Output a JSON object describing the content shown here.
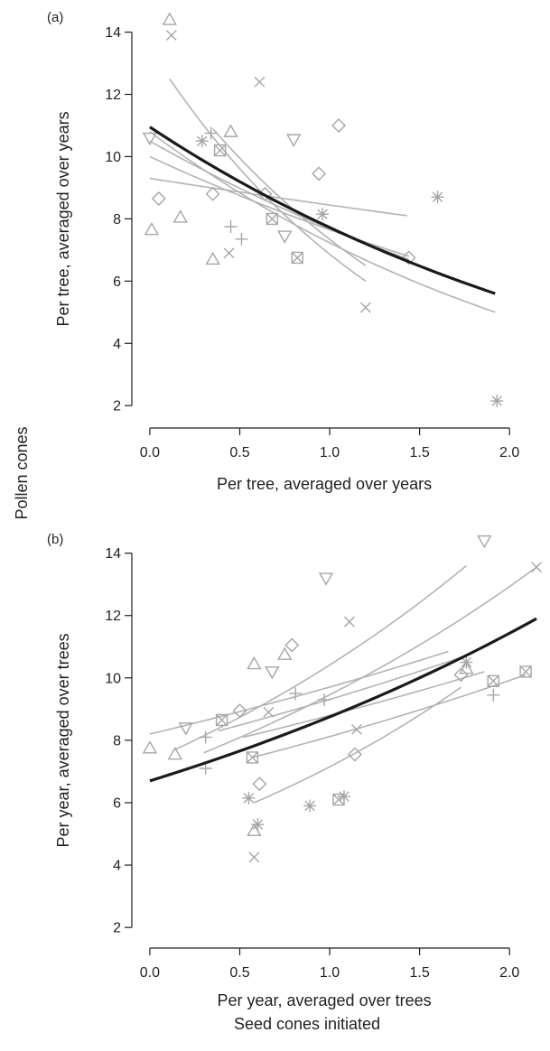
{
  "figure": {
    "shared_ylabel": "Pollen cones",
    "shared_xlabel": "Seed cones initiated"
  },
  "colors": {
    "fit_overall": "#1a1a1a",
    "fit_individual": "#b3b3b3",
    "points": "#a6a6a6",
    "axis": "#231f20"
  },
  "chart_data": [
    {
      "panel": "(a)",
      "type": "scatter",
      "xlabel": "Per tree, averaged over years",
      "ylabel": "Per tree, averaged over years",
      "xlim": [
        -0.1,
        2.2
      ],
      "ylim": [
        1.6,
        14.8
      ],
      "xticks": [
        "0.0",
        "0.5",
        "1.0",
        "1.5",
        "2.0"
      ],
      "yticks": [
        "2",
        "4",
        "6",
        "8",
        "10",
        "12",
        "14"
      ],
      "points": [
        {
          "marker": "triangle-up",
          "x": 0.11,
          "y": 14.4
        },
        {
          "marker": "x",
          "x": 0.12,
          "y": 13.9
        },
        {
          "marker": "triangle-down",
          "x": 0.0,
          "y": 10.6
        },
        {
          "marker": "diamond",
          "x": 0.05,
          "y": 8.65
        },
        {
          "marker": "triangle-up",
          "x": 0.01,
          "y": 7.65
        },
        {
          "marker": "triangle-up",
          "x": 0.17,
          "y": 8.05
        },
        {
          "marker": "asterisk",
          "x": 0.29,
          "y": 10.5
        },
        {
          "marker": "plus",
          "x": 0.34,
          "y": 10.75
        },
        {
          "marker": "boxed-x",
          "x": 0.39,
          "y": 10.2
        },
        {
          "marker": "diamond",
          "x": 0.35,
          "y": 8.8
        },
        {
          "marker": "triangle-up",
          "x": 0.45,
          "y": 10.8
        },
        {
          "marker": "triangle-up",
          "x": 0.35,
          "y": 6.7
        },
        {
          "marker": "x",
          "x": 0.44,
          "y": 6.9
        },
        {
          "marker": "plus",
          "x": 0.45,
          "y": 7.75
        },
        {
          "marker": "plus",
          "x": 0.51,
          "y": 7.35
        },
        {
          "marker": "x",
          "x": 0.61,
          "y": 12.4
        },
        {
          "marker": "diamond",
          "x": 0.64,
          "y": 8.8
        },
        {
          "marker": "boxed-x",
          "x": 0.68,
          "y": 8.0
        },
        {
          "marker": "triangle-down",
          "x": 0.75,
          "y": 7.45
        },
        {
          "marker": "boxed-x",
          "x": 0.82,
          "y": 6.75
        },
        {
          "marker": "triangle-down",
          "x": 0.8,
          "y": 10.55
        },
        {
          "marker": "diamond",
          "x": 0.94,
          "y": 9.45
        },
        {
          "marker": "asterisk",
          "x": 0.96,
          "y": 8.15
        },
        {
          "marker": "diamond",
          "x": 1.05,
          "y": 11.0
        },
        {
          "marker": "x",
          "x": 1.2,
          "y": 5.15
        },
        {
          "marker": "diamond",
          "x": 1.44,
          "y": 6.75
        },
        {
          "marker": "asterisk",
          "x": 1.6,
          "y": 8.7
        },
        {
          "marker": "asterisk",
          "x": 1.93,
          "y": 2.15
        }
      ],
      "individual_fits": [
        {
          "x": [
            0.11,
            1.2
          ],
          "y": [
            12.5,
            6.0
          ],
          "shape": "exponential"
        },
        {
          "x": [
            0.0,
            1.92
          ],
          "y": [
            10.8,
            5.0
          ],
          "shape": "exponential"
        },
        {
          "x": [
            0.0,
            1.44
          ],
          "y": [
            10.5,
            6.7
          ],
          "shape": "exponential"
        },
        {
          "x": [
            0.0,
            1.44
          ],
          "y": [
            10.0,
            6.8
          ],
          "shape": "exponential"
        },
        {
          "x": [
            0.0,
            1.43
          ],
          "y": [
            9.3,
            8.1
          ],
          "shape": "exponential"
        },
        {
          "x": [
            0.35,
            1.2
          ],
          "y": [
            10.9,
            6.5
          ],
          "shape": "exponential"
        }
      ],
      "overall_fit": {
        "x": [
          0.0,
          1.92
        ],
        "y": [
          10.95,
          5.6
        ],
        "shape": "exponential"
      }
    },
    {
      "panel": "(b)",
      "type": "scatter",
      "xlabel": "Per year, averaged over trees",
      "ylabel": "Per year, averaged over trees",
      "xlim": [
        -0.1,
        2.2
      ],
      "ylim": [
        1.6,
        14.8
      ],
      "xticks": [
        "0.0",
        "0.5",
        "1.0",
        "1.5",
        "2.0"
      ],
      "yticks": [
        "2",
        "4",
        "6",
        "8",
        "10",
        "12",
        "14"
      ],
      "points": [
        {
          "marker": "triangle-up",
          "x": 0.0,
          "y": 7.75
        },
        {
          "marker": "triangle-up",
          "x": 0.14,
          "y": 7.55
        },
        {
          "marker": "triangle-down",
          "x": 0.2,
          "y": 8.4
        },
        {
          "marker": "plus",
          "x": 0.31,
          "y": 8.1
        },
        {
          "marker": "plus",
          "x": 0.31,
          "y": 7.1
        },
        {
          "marker": "boxed-x",
          "x": 0.4,
          "y": 8.65
        },
        {
          "marker": "diamond",
          "x": 0.5,
          "y": 8.95
        },
        {
          "marker": "asterisk",
          "x": 0.55,
          "y": 6.15
        },
        {
          "marker": "boxed-x",
          "x": 0.57,
          "y": 7.45
        },
        {
          "marker": "triangle-up",
          "x": 0.58,
          "y": 10.45
        },
        {
          "marker": "triangle-up",
          "x": 0.58,
          "y": 5.1
        },
        {
          "marker": "x",
          "x": 0.58,
          "y": 4.25
        },
        {
          "marker": "asterisk",
          "x": 0.6,
          "y": 5.3
        },
        {
          "marker": "diamond",
          "x": 0.61,
          "y": 6.6
        },
        {
          "marker": "x",
          "x": 0.66,
          "y": 8.9
        },
        {
          "marker": "triangle-down",
          "x": 0.68,
          "y": 10.2
        },
        {
          "marker": "triangle-up",
          "x": 0.75,
          "y": 10.75
        },
        {
          "marker": "diamond",
          "x": 0.79,
          "y": 11.05
        },
        {
          "marker": "plus",
          "x": 0.81,
          "y": 9.5
        },
        {
          "marker": "asterisk",
          "x": 0.89,
          "y": 5.9
        },
        {
          "marker": "triangle-down",
          "x": 0.98,
          "y": 13.2
        },
        {
          "marker": "plus",
          "x": 0.97,
          "y": 9.3
        },
        {
          "marker": "boxed-x",
          "x": 1.05,
          "y": 6.1
        },
        {
          "marker": "asterisk",
          "x": 1.08,
          "y": 6.2
        },
        {
          "marker": "x",
          "x": 1.11,
          "y": 11.8
        },
        {
          "marker": "x",
          "x": 1.15,
          "y": 8.35
        },
        {
          "marker": "diamond",
          "x": 1.14,
          "y": 7.55
        },
        {
          "marker": "diamond",
          "x": 1.73,
          "y": 10.1
        },
        {
          "marker": "asterisk",
          "x": 1.76,
          "y": 10.5
        },
        {
          "marker": "triangle-up",
          "x": 1.76,
          "y": 10.3
        },
        {
          "marker": "triangle-down",
          "x": 1.86,
          "y": 14.4
        },
        {
          "marker": "boxed-x",
          "x": 1.91,
          "y": 9.9
        },
        {
          "marker": "plus",
          "x": 1.91,
          "y": 9.45
        },
        {
          "marker": "boxed-x",
          "x": 2.09,
          "y": 10.2
        },
        {
          "marker": "x",
          "x": 2.15,
          "y": 13.55
        }
      ],
      "individual_fits": [
        {
          "x": [
            0.0,
            1.66
          ],
          "y": [
            8.2,
            10.85
          ],
          "shape": "exponential"
        },
        {
          "x": [
            0.14,
            1.76
          ],
          "y": [
            7.7,
            13.6
          ],
          "shape": "exponential"
        },
        {
          "x": [
            0.3,
            2.15
          ],
          "y": [
            7.6,
            13.55
          ],
          "shape": "exponential"
        },
        {
          "x": [
            0.38,
            1.8
          ],
          "y": [
            8.3,
            10.8
          ],
          "shape": "exponential"
        },
        {
          "x": [
            0.52,
            1.86
          ],
          "y": [
            8.1,
            10.2
          ],
          "shape": "exponential"
        },
        {
          "x": [
            0.57,
            2.09
          ],
          "y": [
            7.45,
            10.1
          ],
          "shape": "exponential"
        },
        {
          "x": [
            0.58,
            1.73
          ],
          "y": [
            6.0,
            9.7
          ],
          "shape": "exponential"
        }
      ],
      "overall_fit": {
        "x": [
          0.0,
          2.15
        ],
        "y": [
          6.7,
          11.9
        ],
        "shape": "exponential"
      }
    }
  ]
}
